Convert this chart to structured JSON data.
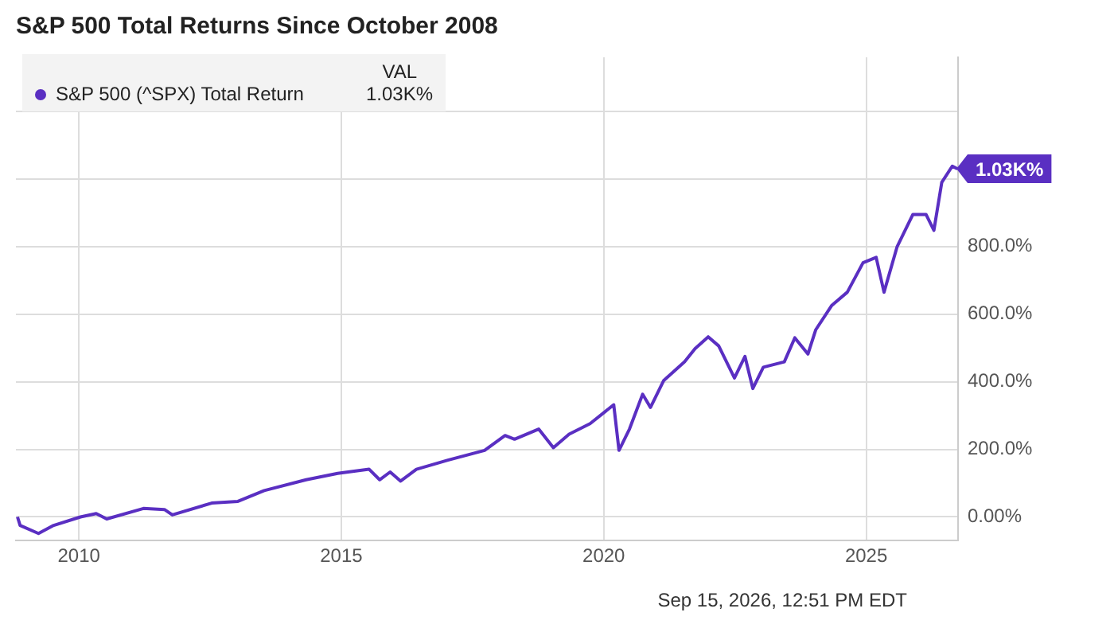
{
  "chart_data": {
    "type": "line",
    "title": "S&P 500 Total Returns Since October 2008",
    "x": [
      2008.83,
      2008.88,
      2009.23,
      2009.52,
      2010.03,
      2010.33,
      2010.53,
      2011.23,
      2011.63,
      2011.78,
      2012.53,
      2013.03,
      2013.53,
      2014.33,
      2014.93,
      2015.53,
      2015.73,
      2015.93,
      2016.13,
      2016.43,
      2017.03,
      2017.73,
      2018.12,
      2018.3,
      2018.76,
      2019.04,
      2019.34,
      2019.74,
      2020.19,
      2020.29,
      2020.49,
      2020.74,
      2020.89,
      2021.14,
      2021.54,
      2021.74,
      2021.99,
      2022.19,
      2022.49,
      2022.69,
      2022.84,
      2023.04,
      2023.44,
      2023.64,
      2023.89,
      2024.04,
      2024.34,
      2024.64,
      2024.94,
      2025.19,
      2025.34,
      2025.59,
      2025.89,
      2026.14,
      2026.29,
      2026.44,
      2026.64,
      2026.74
    ],
    "series": [
      {
        "name": "S&P 500 (^SPX) Total Return",
        "color": "#5a2fc2",
        "values": [
          0,
          -25,
          -49,
          -25,
          0,
          10,
          -6,
          25,
          22,
          6,
          41,
          46,
          78,
          110,
          129,
          141,
          110,
          133,
          106,
          141,
          168,
          197,
          241,
          230,
          260,
          205,
          245,
          276,
          332,
          197,
          260,
          363,
          324,
          403,
          459,
          498,
          533,
          506,
          411,
          475,
          380,
          443,
          459,
          530,
          482,
          554,
          625,
          665,
          752,
          768,
          665,
          800,
          895,
          895,
          848,
          990,
          1038,
          1030
        ],
        "value_labels": [
          null,
          null,
          null,
          null,
          null,
          null,
          null,
          null,
          null,
          null,
          null,
          null,
          null,
          null,
          null,
          null,
          null,
          null,
          null,
          null,
          null,
          null,
          null,
          null,
          null,
          null,
          null,
          null,
          null,
          null,
          null,
          null,
          null,
          null,
          null,
          null,
          null,
          null,
          null,
          null,
          null,
          null,
          null,
          null,
          null,
          null,
          null,
          null,
          null,
          null,
          null,
          null,
          null,
          null,
          null,
          null,
          null,
          "1.03K%"
        ]
      }
    ],
    "legend_title": "VAL",
    "legend": "top left",
    "xlim": [
      2008.8,
      2026.75
    ],
    "xticks": [
      2010,
      2015,
      2020,
      2025
    ],
    "ylim": [
      -70,
      1360
    ],
    "yticks": [
      {
        "value": 0,
        "label": "0.00%"
      },
      {
        "value": 200,
        "label": "200.0%"
      },
      {
        "value": 400,
        "label": "400.0%"
      },
      {
        "value": 600,
        "label": "600.0%"
      },
      {
        "value": 800,
        "label": "800.0%"
      },
      {
        "value": 1000,
        "label": null
      },
      {
        "value": 1200,
        "label": null
      }
    ],
    "grid": true,
    "marker": "none",
    "line_style": "solid",
    "annotations": [
      "Sep 15, 2026, 12:51 PM EDT"
    ]
  }
}
